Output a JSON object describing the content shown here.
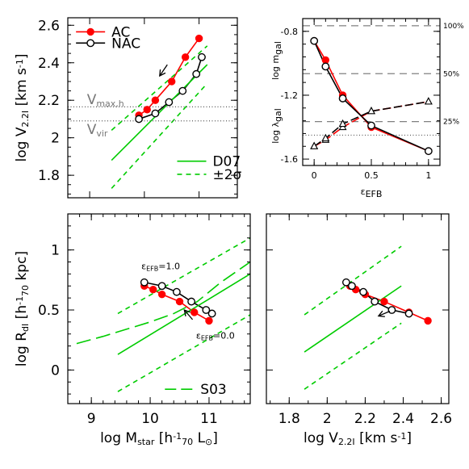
{
  "colors": {
    "AC": "#ff0000",
    "NAC": "#000000",
    "model": "#00cc00",
    "dashed_ref": "#808080",
    "dotted_ref": "#555555"
  },
  "chart_data": [
    {
      "id": "tl",
      "type": "line",
      "xlim": [
        8.6,
        11.7
      ],
      "ylim": [
        1.68,
        2.64
      ],
      "x_ticks": [],
      "y_ticks": [
        "1.8",
        "2",
        "2.2",
        "2.4",
        "2.6"
      ],
      "y_tick_values": [
        1.8,
        2.0,
        2.2,
        2.4,
        2.6
      ],
      "ylabel": {
        "main": "log V",
        "sub": "2.2I",
        "unit": " [km s",
        "sup": "-1",
        "end": "]"
      },
      "series": [
        {
          "name": "AC",
          "style": "ac",
          "x": [
            9.9,
            10.05,
            10.2,
            10.5,
            10.75,
            11.0
          ],
          "y": [
            2.12,
            2.15,
            2.2,
            2.3,
            2.43,
            2.53
          ]
        },
        {
          "name": "NAC",
          "style": "nac",
          "x": [
            9.9,
            10.2,
            10.45,
            10.7,
            10.95,
            11.05
          ],
          "y": [
            2.1,
            2.13,
            2.19,
            2.25,
            2.34,
            2.43
          ]
        },
        {
          "name": "D07",
          "style": "green-solid",
          "x": [
            9.4,
            11.15
          ],
          "y": [
            1.88,
            2.39
          ]
        },
        {
          "name": "±2σ",
          "style": "green-dash",
          "x": [
            9.4,
            11.15
          ],
          "y": [
            2.04,
            2.49
          ]
        },
        {
          "name": "",
          "style": "green-dash",
          "x": [
            9.4,
            11.15
          ],
          "y": [
            1.73,
            2.29
          ]
        },
        {
          "name": "",
          "style": "dotted-h",
          "x": [
            8.6,
            11.7
          ],
          "y": [
            2.165,
            2.165
          ]
        },
        {
          "name": "",
          "style": "dotted-h",
          "x": [
            8.6,
            11.7
          ],
          "y": [
            2.09,
            2.09
          ]
        }
      ],
      "annotations": [
        {
          "text": "V",
          "sub": "max,h",
          "x": 8.95,
          "y": 2.18
        },
        {
          "text": "V",
          "sub": "vir",
          "x": 8.95,
          "y": 2.02
        }
      ],
      "arrow": {
        "x1": 10.42,
        "y1": 2.39,
        "x2": 10.28,
        "y2": 2.33
      },
      "legend": [
        {
          "label": "AC",
          "style": "ac",
          "x": 8.75,
          "y": 2.565
        },
        {
          "label": "NAC",
          "style": "nac",
          "x": 8.75,
          "y": 2.505
        },
        {
          "label": "D07",
          "style": "green-solid",
          "x": 10.6,
          "y": 1.875
        },
        {
          "label": "±2σ",
          "style": "green-dash",
          "x": 10.6,
          "y": 1.805
        }
      ]
    },
    {
      "id": "tr",
      "type": "line",
      "xlim": [
        -0.1,
        1.1
      ],
      "ylim": [
        -1.64,
        -0.72
      ],
      "x_ticks": [
        "0",
        "0.5",
        "1"
      ],
      "x_tick_values": [
        0,
        0.5,
        1
      ],
      "y_ticks": [
        "-0.8",
        "-1.2",
        "-1.6"
      ],
      "y_tick_values": [
        -0.8,
        -1.2,
        -1.6
      ],
      "xlabel": {
        "main": "ε",
        "sub": "EFB"
      },
      "ylabel_top": {
        "main": "log m",
        "sub": "gal"
      },
      "ylabel_bottom": {
        "main": "log λ",
        "sub": "gal"
      },
      "right_labels": [
        {
          "text": "100%",
          "y": -0.765
        },
        {
          "text": "50%",
          "y": -1.065
        },
        {
          "text": "25%",
          "y": -1.365
        }
      ],
      "series": [
        {
          "name": "",
          "style": "gray-dash-h",
          "x": [
            -0.1,
            1.1
          ],
          "y": [
            -0.765,
            -0.765
          ]
        },
        {
          "name": "",
          "style": "gray-dash-h",
          "x": [
            -0.1,
            1.1
          ],
          "y": [
            -1.065,
            -1.065
          ]
        },
        {
          "name": "",
          "style": "gray-dash-h",
          "x": [
            -0.1,
            1.1
          ],
          "y": [
            -1.365,
            -1.365
          ]
        },
        {
          "name": "",
          "style": "dotted-h",
          "x": [
            -0.1,
            1.1
          ],
          "y": [
            -1.45,
            -1.45
          ]
        },
        {
          "name": "",
          "style": "ac",
          "x": [
            0,
            0.1,
            0.25,
            0.5,
            1.0
          ],
          "y": [
            -0.86,
            -0.98,
            -1.2,
            -1.4,
            -1.55
          ]
        },
        {
          "name": "",
          "style": "nac",
          "x": [
            0,
            0.1,
            0.25,
            0.5,
            1.0
          ],
          "y": [
            -0.86,
            -1.02,
            -1.22,
            -1.39,
            -1.55
          ]
        },
        {
          "name": "",
          "style": "tri-red",
          "x": [
            0,
            0.1,
            0.25,
            0.5,
            1.0
          ],
          "y": [
            -1.52,
            -1.48,
            -1.4,
            -1.3,
            -1.24
          ]
        },
        {
          "name": "",
          "style": "tri-black",
          "x": [
            0,
            0.1,
            0.25,
            0.5,
            1.0
          ],
          "y": [
            -1.52,
            -1.47,
            -1.38,
            -1.3,
            -1.24
          ]
        }
      ]
    },
    {
      "id": "bl",
      "type": "line",
      "xlim": [
        8.6,
        11.7
      ],
      "ylim": [
        -0.28,
        1.3
      ],
      "x_ticks": [
        "9",
        "10",
        "11"
      ],
      "x_tick_values": [
        9,
        10,
        11
      ],
      "y_ticks": [
        "0",
        "0.5",
        "1"
      ],
      "y_tick_values": [
        0,
        0.5,
        1
      ],
      "xlabel": {
        "main": "log M",
        "sub": "star",
        "unit": " [h",
        "sup": "-1",
        "sub2": "70",
        "unit2": " L",
        "sub3": "⊙",
        "end": "]"
      },
      "ylabel": {
        "main": "log R",
        "sub": "dI",
        "unit": " [h",
        "sup": "-1",
        "sub2": "70",
        "unit2": " kpc]"
      },
      "series": [
        {
          "name": "",
          "style": "ac",
          "x": [
            9.9,
            10.05,
            10.2,
            10.5,
            10.75,
            11.0
          ],
          "y": [
            0.7,
            0.67,
            0.63,
            0.57,
            0.48,
            0.41
          ]
        },
        {
          "name": "",
          "style": "nac",
          "x": [
            9.9,
            10.2,
            10.45,
            10.7,
            10.95,
            11.05
          ],
          "y": [
            0.73,
            0.7,
            0.65,
            0.57,
            0.5,
            0.47
          ]
        },
        {
          "name": "",
          "style": "green-solid",
          "x": [
            9.45,
            11.7
          ],
          "y": [
            0.13,
            0.8
          ]
        },
        {
          "name": "",
          "style": "green-dash",
          "x": [
            9.45,
            11.7
          ],
          "y": [
            0.47,
            1.1
          ]
        },
        {
          "name": "",
          "style": "green-dash",
          "x": [
            9.45,
            11.7
          ],
          "y": [
            -0.18,
            0.46
          ]
        },
        {
          "name": "S03",
          "style": "green-longdash",
          "x": [
            8.75,
            9.2,
            9.6,
            10.0,
            10.4,
            10.8,
            11.2,
            11.7
          ],
          "y": [
            0.22,
            0.28,
            0.34,
            0.4,
            0.47,
            0.57,
            0.73,
            0.9
          ]
        }
      ],
      "annotations": [
        {
          "text": "ε",
          "sub": "EFB",
          "rest": "=1.0",
          "x": 9.85,
          "y": 0.84
        },
        {
          "text": "ε",
          "sub": "EFB",
          "rest": "=0.0",
          "x": 10.78,
          "y": 0.26
        }
      ],
      "arrow": {
        "x1": 10.72,
        "y1": 0.42,
        "x2": 10.58,
        "y2": 0.5
      },
      "legend": [
        {
          "label": "S03",
          "style": "green-longdash",
          "x": 10.25,
          "y": -0.16
        }
      ]
    },
    {
      "id": "br",
      "type": "line",
      "xlim": [
        1.68,
        2.64
      ],
      "ylim": [
        -0.28,
        1.3
      ],
      "x_ticks": [
        "1.8",
        "2",
        "2.2",
        "2.4",
        "2.6"
      ],
      "x_tick_values": [
        1.8,
        2.0,
        2.2,
        2.4,
        2.6
      ],
      "y_ticks": [],
      "xlabel": {
        "main": "log V",
        "sub": "2.2I",
        "unit": " [km s",
        "sup": "-1",
        "end": "]"
      },
      "series": [
        {
          "name": "",
          "style": "ac",
          "x": [
            2.12,
            2.15,
            2.2,
            2.3,
            2.43,
            2.53
          ],
          "y": [
            0.7,
            0.67,
            0.63,
            0.57,
            0.48,
            0.41
          ]
        },
        {
          "name": "",
          "style": "nac",
          "x": [
            2.1,
            2.13,
            2.19,
            2.25,
            2.34,
            2.43
          ],
          "y": [
            0.73,
            0.7,
            0.65,
            0.57,
            0.5,
            0.47
          ]
        },
        {
          "name": "",
          "style": "green-solid",
          "x": [
            1.88,
            2.39
          ],
          "y": [
            0.15,
            0.7
          ]
        },
        {
          "name": "",
          "style": "green-dash",
          "x": [
            1.88,
            2.39
          ],
          "y": [
            0.46,
            1.03
          ]
        },
        {
          "name": "",
          "style": "green-dash",
          "x": [
            1.88,
            2.39
          ],
          "y": [
            -0.16,
            0.39
          ]
        }
      ],
      "arrow": {
        "x1": 2.33,
        "y1": 0.49,
        "x2": 2.27,
        "y2": 0.45
      }
    }
  ]
}
